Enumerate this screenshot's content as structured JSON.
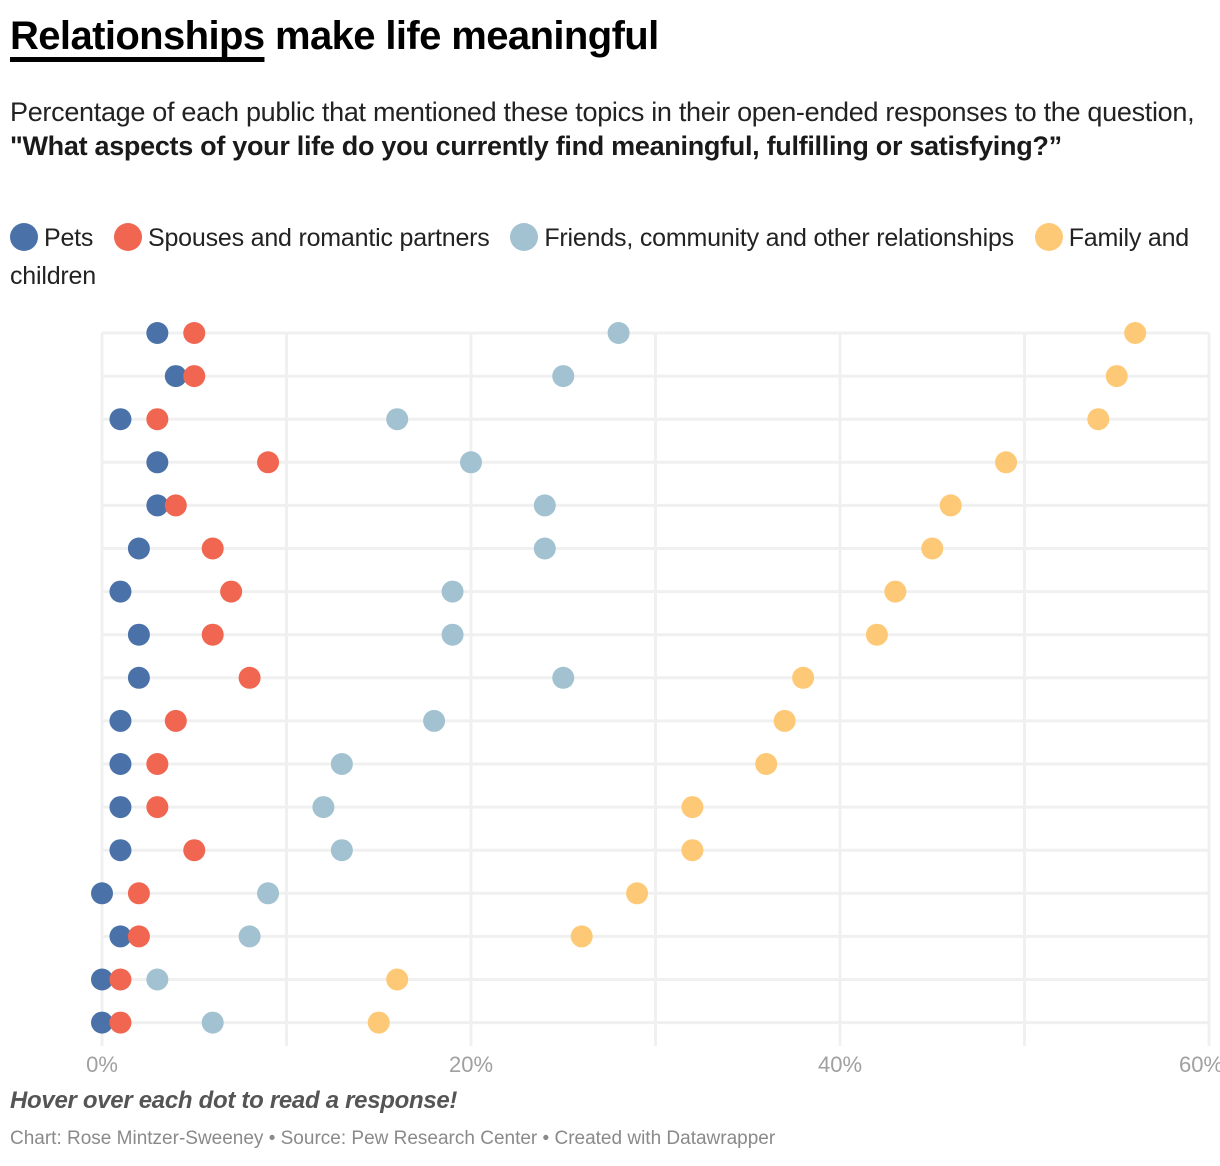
{
  "header": {
    "title_underlined": "Relationships",
    "title_rest": " make life meaningful",
    "subtitle_plain": "Percentage of each public that mentioned these topics in their open-ended responses to the question, ",
    "subtitle_bold": "\"What aspects of your life do you currently find meaningful, fulfilling or satisfying?”"
  },
  "legend": [
    {
      "label": "Pets",
      "color": "#4a72a8"
    },
    {
      "label": "Spouses and romantic partners",
      "color": "#f06650"
    },
    {
      "label": "Friends, community and other relationships",
      "color": "#a2c2d1"
    },
    {
      "label": "Family and children",
      "color": "#fec976"
    }
  ],
  "footer": {
    "note": "Hover over each dot to read a response!",
    "credit": "Chart: Rose Mintzer-Sweeney • Source: Pew Research Center • Created with Datawrapper"
  },
  "chart_data": {
    "type": "scatter",
    "subtype": "dot-plot",
    "title": "Relationships make life meaningful",
    "xlabel": "",
    "ylabel": "",
    "xlim": [
      0,
      60
    ],
    "x_ticks": [
      0,
      20,
      40,
      60
    ],
    "x_tick_labels": [
      "0%",
      "20%",
      "40%",
      "60%"
    ],
    "x_gridlines": [
      0,
      10,
      20,
      30,
      40,
      50,
      60
    ],
    "grid": true,
    "legend_position": "top",
    "row_count": 17,
    "series": [
      {
        "name": "Pets",
        "color": "#4a72a8",
        "values": [
          3,
          4,
          1,
          3,
          3,
          2,
          1,
          2,
          2,
          1,
          1,
          1,
          1,
          0,
          1,
          0,
          0
        ]
      },
      {
        "name": "Spouses and romantic partners",
        "color": "#f06650",
        "values": [
          5,
          5,
          3,
          9,
          4,
          6,
          7,
          6,
          8,
          4,
          3,
          3,
          5,
          2,
          2,
          1,
          1
        ]
      },
      {
        "name": "Friends, community and other relationships",
        "color": "#a2c2d1",
        "values": [
          28,
          25,
          16,
          20,
          24,
          24,
          19,
          19,
          25,
          18,
          13,
          12,
          13,
          9,
          8,
          3,
          6
        ]
      },
      {
        "name": "Family and children",
        "color": "#fec976",
        "values": [
          56,
          55,
          54,
          49,
          46,
          45,
          43,
          42,
          38,
          37,
          36,
          32,
          32,
          29,
          26,
          16,
          15
        ]
      }
    ]
  }
}
